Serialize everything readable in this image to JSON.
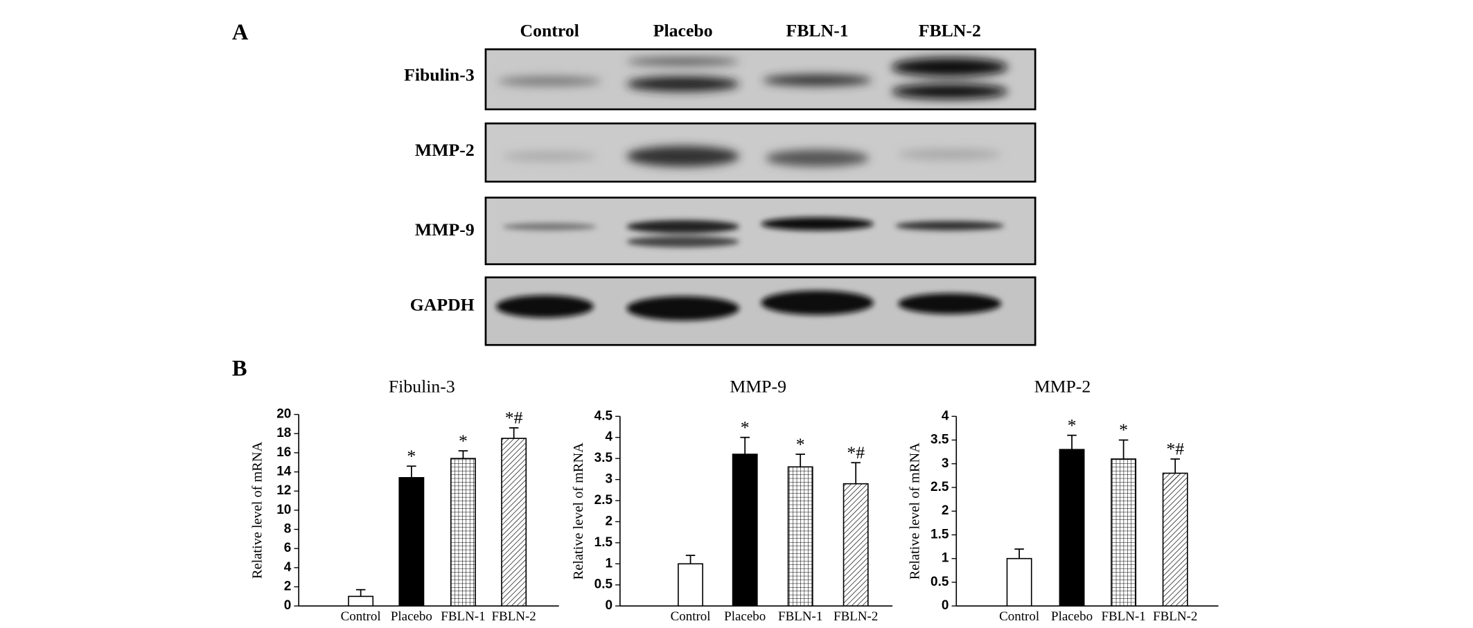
{
  "blot": {
    "panel_label": "A",
    "lanes": [
      "Control",
      "Placebo",
      "FBLN-1",
      "FBLN-2"
    ],
    "proteins": [
      "Fibulin-3",
      "MMP-2",
      "MMP-9",
      "GAPDH"
    ]
  },
  "panel_b_label": "B",
  "chart_data": [
    {
      "type": "bar",
      "title": "Fibulin-3",
      "y_label": "Relative level of mRNA",
      "categories": [
        "Control",
        "Placebo",
        "FBLN-1",
        "FBLN-2"
      ],
      "values": [
        1.0,
        13.4,
        15.4,
        17.5
      ],
      "errors": [
        0.7,
        1.2,
        0.8,
        1.1
      ],
      "annotations": [
        null,
        "*",
        "*",
        "*#"
      ],
      "patterns": [
        "white",
        "black",
        "grid",
        "diagonal"
      ],
      "ylim": [
        0,
        20
      ],
      "yticks": [
        0,
        2,
        4,
        6,
        8,
        10,
        12,
        14,
        16,
        18,
        20
      ]
    },
    {
      "type": "bar",
      "title": "MMP-9",
      "y_label": "Relative level of mRNA",
      "categories": [
        "Control",
        "Placebo",
        "FBLN-1",
        "FBLN-2"
      ],
      "values": [
        1.0,
        3.6,
        3.3,
        2.9
      ],
      "errors": [
        0.2,
        0.4,
        0.3,
        0.5
      ],
      "annotations": [
        null,
        "*",
        "*",
        "*#"
      ],
      "patterns": [
        "white",
        "black",
        "grid",
        "diagonal"
      ],
      "ylim": [
        0,
        4.5
      ],
      "yticks": [
        0,
        0.5,
        1,
        1.5,
        2,
        2.5,
        3,
        3.5,
        4,
        4.5
      ]
    },
    {
      "type": "bar",
      "title": "MMP-2",
      "y_label": "Relative level of mRNA",
      "categories": [
        "Control",
        "Placebo",
        "FBLN-1",
        "FBLN-2"
      ],
      "values": [
        1.0,
        3.3,
        3.1,
        2.8
      ],
      "errors": [
        0.2,
        0.3,
        0.4,
        0.3
      ],
      "annotations": [
        null,
        "*",
        "*",
        "*#"
      ],
      "patterns": [
        "white",
        "black",
        "grid",
        "diagonal"
      ],
      "ylim": [
        0,
        4
      ],
      "yticks": [
        0,
        0.5,
        1,
        1.5,
        2,
        2.5,
        3,
        3.5,
        4
      ]
    }
  ]
}
